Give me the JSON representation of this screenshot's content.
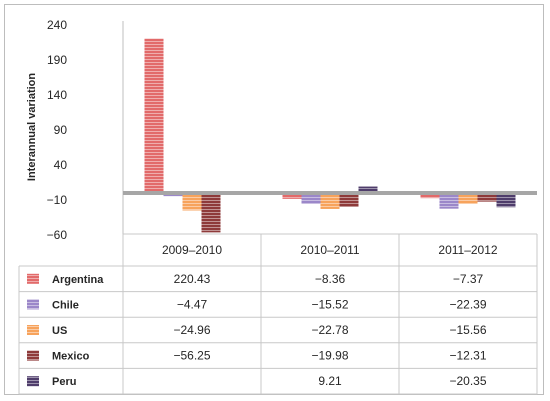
{
  "chart_data": {
    "type": "bar",
    "ylabel": "Interannual variation",
    "ylim": [
      -60,
      240
    ],
    "yticks": [
      "240",
      "190",
      "140",
      "90",
      "40",
      "−10",
      "−60"
    ],
    "ytick_values": [
      240,
      190,
      140,
      90,
      40,
      -10,
      -60
    ],
    "categories": [
      "2009–2010",
      "2010–2011",
      "2011–2012"
    ],
    "series": [
      {
        "name": "Argentina",
        "color": "#e26a6a",
        "values": [
          220.43,
          -8.36,
          -7.37
        ],
        "labels": [
          "220.43",
          "−8.36",
          "−7.37"
        ]
      },
      {
        "name": "Chile",
        "color": "#9b87c9",
        "values": [
          -4.47,
          -15.52,
          -22.39
        ],
        "labels": [
          "−4.47",
          "−15.52",
          "−22.39"
        ]
      },
      {
        "name": "US",
        "color": "#f7a35c",
        "values": [
          -24.96,
          -22.78,
          -15.56
        ],
        "labels": [
          "−24.96",
          "−22.78",
          "−15.56"
        ]
      },
      {
        "name": "Mexico",
        "color": "#8e3a3a",
        "values": [
          -56.25,
          -19.98,
          -12.31
        ],
        "labels": [
          "−56.25",
          "−19.98",
          "−12.31"
        ]
      },
      {
        "name": "Peru",
        "color": "#4f3d6b",
        "values": [
          null,
          9.21,
          -20.35
        ],
        "labels": [
          "",
          "9.21",
          "−20.35"
        ]
      }
    ],
    "grid": false,
    "legend": "data-table"
  }
}
